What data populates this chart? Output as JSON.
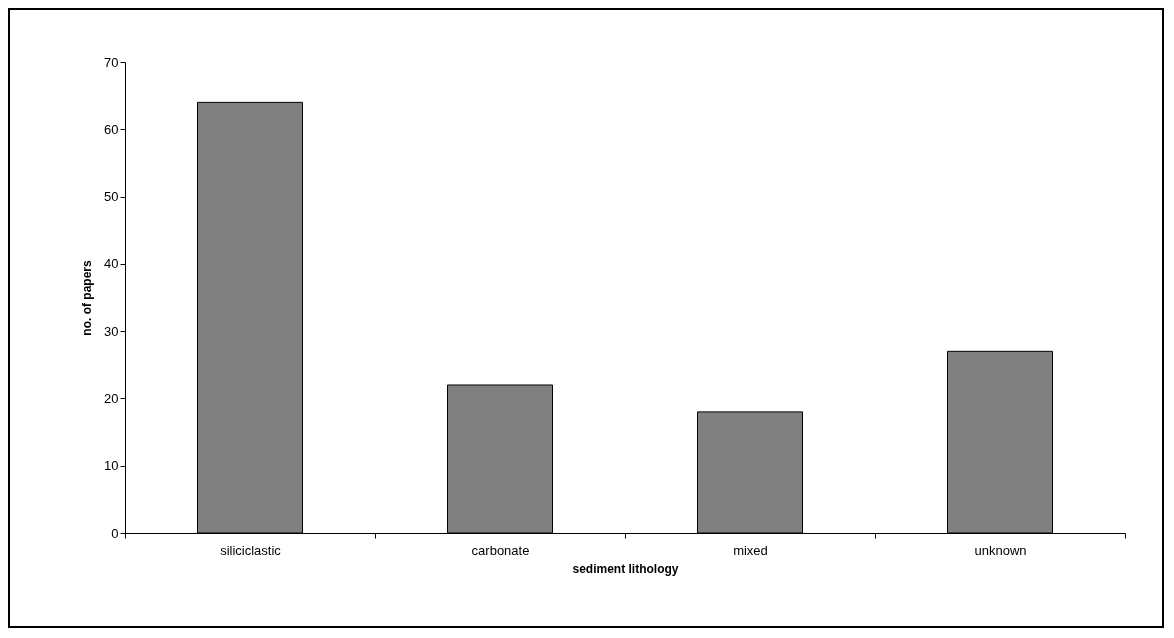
{
  "chart_data": {
    "type": "bar",
    "xlabel": "sediment lithology",
    "ylabel": "no. of papers",
    "categories": [
      "siliciclastic",
      "carbonate",
      "mixed",
      "unknown"
    ],
    "values": [
      64,
      22,
      18,
      27
    ],
    "color": "#808080",
    "ylim": [
      0,
      70
    ],
    "yticks": [
      0,
      10,
      20,
      30,
      40,
      50,
      60,
      70
    ],
    "grid": false
  }
}
